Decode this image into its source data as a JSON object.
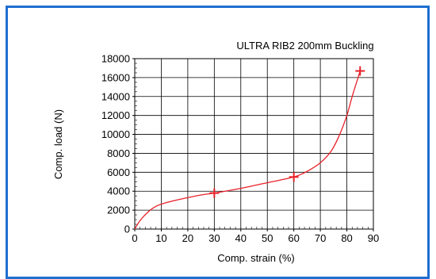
{
  "chart_data": {
    "type": "line",
    "title": "ULTRA RIB2   200mm  Buckling",
    "xlabel": "Comp. strain (%)",
    "ylabel": "Comp. load (N)",
    "xlim": [
      0,
      90
    ],
    "ylim": [
      0,
      18000
    ],
    "x_ticks": [
      0,
      10,
      20,
      30,
      40,
      50,
      60,
      70,
      80,
      90
    ],
    "y_ticks": [
      0,
      2000,
      4000,
      6000,
      8000,
      10000,
      12000,
      14000,
      16000,
      18000
    ],
    "grid": true,
    "series": [
      {
        "color": "#e8222a",
        "points": [
          [
            0,
            0
          ],
          [
            2,
            900
          ],
          [
            5,
            1800
          ],
          [
            8,
            2400
          ],
          [
            12,
            2800
          ],
          [
            18,
            3200
          ],
          [
            25,
            3600
          ],
          [
            30,
            3800
          ],
          [
            40,
            4300
          ],
          [
            50,
            4900
          ],
          [
            60,
            5500
          ],
          [
            65,
            6100
          ],
          [
            70,
            7000
          ],
          [
            74,
            8200
          ],
          [
            77,
            9800
          ],
          [
            80,
            12000
          ],
          [
            82,
            14000
          ],
          [
            84,
            15800
          ],
          [
            85,
            16700
          ]
        ],
        "markers": [
          [
            30,
            3800
          ],
          [
            60,
            5500
          ],
          [
            85,
            16700
          ]
        ]
      }
    ]
  }
}
